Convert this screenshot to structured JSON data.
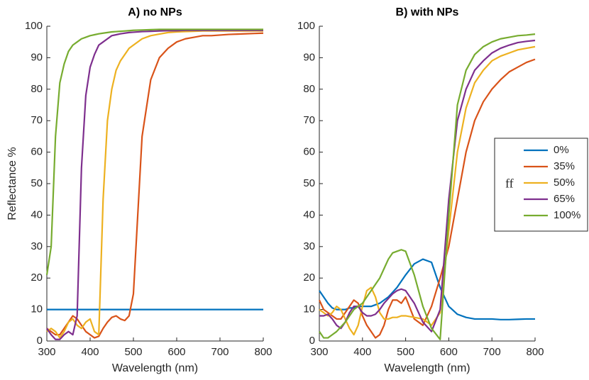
{
  "chart_data": [
    {
      "type": "line",
      "title": "A) no NPs",
      "xlabel": "Wavelength (nm)",
      "ylabel": "Reflectance %",
      "x": [
        300,
        310,
        320,
        330,
        340,
        350,
        360,
        370,
        380,
        390,
        400,
        410,
        420,
        430,
        440,
        450,
        460,
        470,
        480,
        490,
        500,
        520,
        540,
        560,
        580,
        600,
        620,
        640,
        660,
        680,
        700,
        720,
        740,
        760,
        780,
        800
      ],
      "xlim": [
        300,
        800
      ],
      "ylim": [
        0,
        100
      ],
      "xticks": [
        300,
        400,
        500,
        600,
        700,
        800
      ],
      "yticks": [
        0,
        10,
        20,
        30,
        40,
        50,
        60,
        70,
        80,
        90,
        100
      ],
      "series": [
        {
          "color": "#0072BD",
          "values": [
            10,
            10,
            10,
            10,
            10,
            10,
            10,
            10,
            10,
            10,
            10,
            10,
            10,
            10,
            10,
            10,
            10,
            10,
            10,
            10,
            10,
            10,
            10,
            10,
            10,
            10,
            10,
            10,
            10,
            10,
            10,
            10,
            10,
            10,
            10,
            10
          ]
        },
        {
          "color": "#D95319",
          "values": [
            4,
            3,
            2,
            2,
            4,
            6,
            8,
            7,
            5,
            3,
            2,
            1,
            1.5,
            4,
            6,
            7.5,
            8,
            7,
            6.5,
            8,
            15,
            65,
            83,
            90,
            93,
            95,
            96,
            96.5,
            97,
            97,
            97.2,
            97.4,
            97.5,
            97.6,
            97.7,
            97.8
          ]
        },
        {
          "color": "#EDB120",
          "values": [
            3,
            4,
            3,
            1,
            3,
            6,
            7,
            5,
            4,
            6,
            7,
            3,
            2,
            45,
            70,
            80,
            86,
            89,
            91,
            93,
            94,
            96,
            97,
            97.5,
            98,
            98.2,
            98.3,
            98.4,
            98.5,
            98.5,
            98.5,
            98.5,
            98.5,
            98.5,
            98.5,
            98.5
          ]
        },
        {
          "color": "#7E2F8E",
          "values": [
            4,
            2,
            0.5,
            0.5,
            2,
            3,
            2,
            8,
            55,
            78,
            87,
            91,
            94,
            95,
            96,
            97,
            97.3,
            97.6,
            97.8,
            98,
            98.1,
            98.3,
            98.4,
            98.5,
            98.6,
            98.6,
            98.7,
            98.7,
            98.7,
            98.7,
            98.7,
            98.7,
            98.7,
            98.7,
            98.7,
            98.7
          ]
        },
        {
          "color": "#77AC30",
          "values": [
            21,
            30,
            65,
            82,
            88,
            92,
            94,
            95,
            96,
            96.5,
            97,
            97.3,
            97.6,
            97.8,
            98,
            98.2,
            98.3,
            98.4,
            98.5,
            98.6,
            98.7,
            98.8,
            98.9,
            99,
            99,
            99,
            99,
            99,
            99,
            99,
            99,
            99,
            99,
            99,
            99,
            99
          ]
        }
      ]
    },
    {
      "type": "line",
      "title": "B) with NPs",
      "xlabel": "Wavelength (nm)",
      "x": [
        300,
        310,
        320,
        330,
        340,
        350,
        360,
        370,
        380,
        390,
        400,
        410,
        420,
        430,
        440,
        450,
        460,
        470,
        480,
        490,
        500,
        520,
        540,
        560,
        580,
        600,
        620,
        640,
        660,
        680,
        700,
        720,
        740,
        760,
        780,
        800
      ],
      "xlim": [
        300,
        800
      ],
      "ylim": [
        0,
        100
      ],
      "xticks": [
        300,
        400,
        500,
        600,
        700,
        800
      ],
      "yticks": [
        0,
        10,
        20,
        30,
        40,
        50,
        60,
        70,
        80,
        90,
        100
      ],
      "legend": "east",
      "legend_title": "ff",
      "series": [
        {
          "name": "0%",
          "color": "#0072BD",
          "values": [
            16,
            14,
            12,
            10.5,
            10,
            10,
            10,
            10.5,
            10.5,
            11,
            11,
            11,
            11,
            11.5,
            12,
            13,
            14,
            15.5,
            17,
            19,
            21,
            24.5,
            26,
            25,
            17,
            11,
            8.5,
            7.5,
            7,
            7,
            7,
            6.8,
            6.8,
            6.9,
            7,
            7
          ]
        },
        {
          "name": "35%",
          "color": "#D95319",
          "values": [
            13,
            10,
            9,
            8,
            7,
            7,
            9,
            11,
            13,
            12,
            8,
            5,
            3,
            1,
            2,
            5,
            10,
            13,
            13,
            12,
            14,
            7,
            5,
            11,
            20,
            30,
            45,
            60,
            70,
            76,
            80,
            83,
            85.5,
            87,
            88.5,
            89.5
          ]
        },
        {
          "name": "50%",
          "color": "#EDB120",
          "values": [
            10,
            9,
            8,
            9,
            11,
            10,
            7,
            4,
            2,
            5,
            11,
            16,
            17,
            14,
            9,
            7,
            7,
            7.5,
            7.5,
            8,
            8,
            7.5,
            7,
            5,
            9,
            35,
            60,
            74,
            82,
            86,
            89,
            90.5,
            91.5,
            92.5,
            93,
            93.5
          ]
        },
        {
          "name": "65%",
          "color": "#7E2F8E",
          "values": [
            8,
            8,
            8.5,
            7,
            5,
            4,
            6,
            9,
            11,
            11,
            9,
            8,
            8,
            8.5,
            10,
            12,
            13.5,
            15,
            16,
            16.5,
            16,
            12,
            6,
            3,
            10,
            45,
            70,
            80,
            86,
            89,
            91.5,
            93,
            94,
            94.8,
            95.2,
            95.5
          ]
        },
        {
          "name": "100%",
          "color": "#77AC30",
          "values": [
            3,
            1,
            1,
            2,
            3,
            4.5,
            6,
            8,
            10,
            11,
            12,
            14,
            16,
            18,
            20,
            23,
            26,
            28,
            28.5,
            29,
            28.5,
            21,
            11,
            4,
            0.5,
            40,
            75,
            86,
            91,
            93.5,
            95,
            96,
            96.5,
            97,
            97.2,
            97.5
          ]
        }
      ]
    }
  ]
}
